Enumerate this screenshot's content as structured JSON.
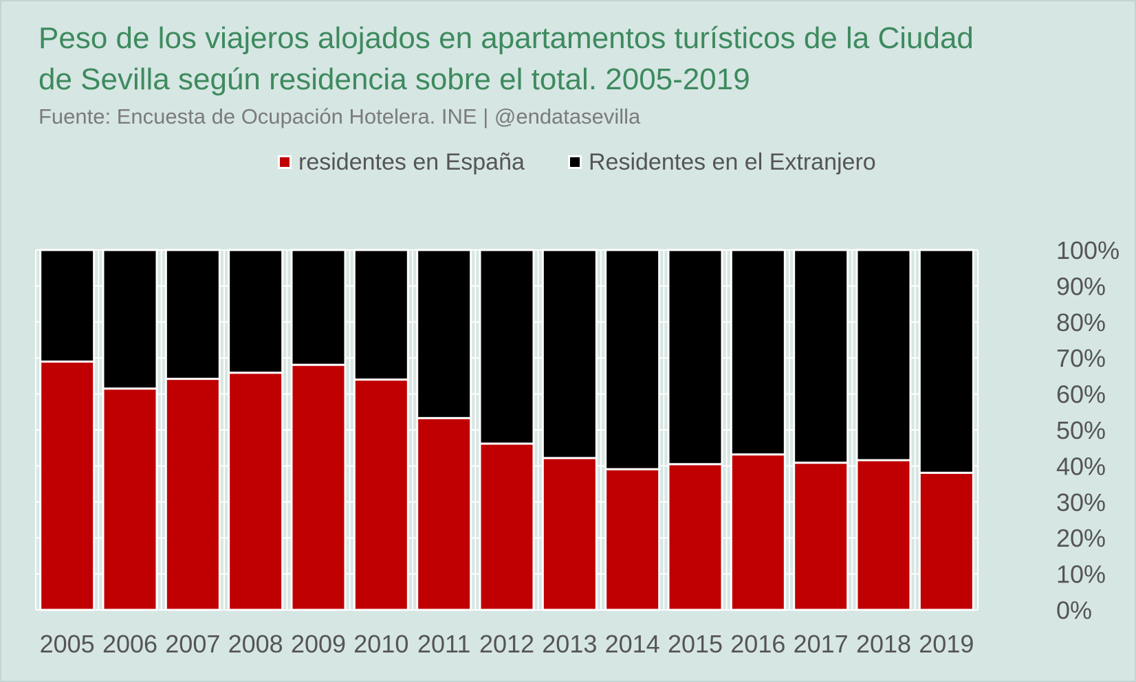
{
  "colors": {
    "background": "#d6e6e3",
    "title": "#3d8a5e",
    "subtitle": "#7b7b7b",
    "axis_text": "#555555",
    "spain": "#c00000",
    "abroad": "#000000",
    "gridline": "#ffffff"
  },
  "chart_data": {
    "type": "bar",
    "stacked": true,
    "title": "Peso de los viajeros alojados en apartamentos turísticos de la Ciudad de Sevilla según residencia sobre el total. 2005-2019",
    "subtitle": "Fuente: Encuesta de Ocupación Hotelera. INE | @endatasevilla",
    "categories": [
      "2005",
      "2006",
      "2007",
      "2008",
      "2009",
      "2010",
      "2011",
      "2012",
      "2013",
      "2014",
      "2015",
      "2016",
      "2017",
      "2018",
      "2019"
    ],
    "series": [
      {
        "name": "residentes en España",
        "color": "#c00000",
        "values": [
          69,
          61.5,
          64.2,
          65.9,
          68.1,
          64,
          53.3,
          46.2,
          42.2,
          39.1,
          40.5,
          43.2,
          40.9,
          41.6,
          38.1
        ]
      },
      {
        "name": "Residentes en el Extranjero",
        "color": "#000000",
        "values": [
          31,
          38.5,
          35.8,
          34.1,
          31.9,
          36,
          46.7,
          53.8,
          57.8,
          60.9,
          59.5,
          56.8,
          59.1,
          58.4,
          61.9
        ]
      }
    ],
    "ylim": [
      0,
      100
    ],
    "yticks": [
      "0%",
      "10%",
      "20%",
      "30%",
      "40%",
      "50%",
      "60%",
      "70%",
      "80%",
      "90%",
      "100%"
    ],
    "y_axis_side": "right",
    "grid": true,
    "legend_position": "top-center",
    "xlabel": "",
    "ylabel": ""
  }
}
